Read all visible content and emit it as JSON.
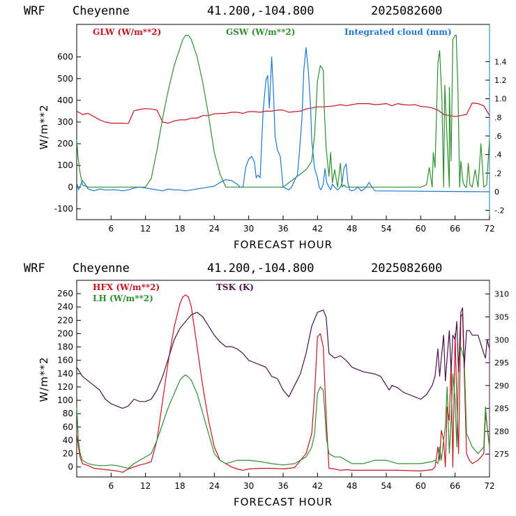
{
  "header": {
    "model": "WRF",
    "station": "Cheyenne",
    "coords": "41.200,-104.800",
    "run": "2025082600"
  },
  "colors": {
    "red": "#c8141e",
    "green": "#2f8f2f",
    "blue": "#1e78d2",
    "purple": "#4a1348"
  },
  "chart_data": [
    {
      "type": "line",
      "title": "",
      "xlabel": "FORECAST HOUR",
      "ylabel": "W/m**2",
      "xlim": [
        0,
        72
      ],
      "ylim": [
        -150,
        750
      ],
      "y2lim": [
        -0.3,
        1.8
      ],
      "xticks": [
        6,
        12,
        18,
        24,
        30,
        36,
        42,
        48,
        54,
        60,
        66,
        72
      ],
      "yticks": [
        -100,
        0,
        100,
        200,
        300,
        400,
        500,
        600
      ],
      "y2ticks": [
        -0.2,
        0,
        0.2,
        0.4,
        0.6,
        0.8,
        1.0,
        1.2,
        1.4
      ],
      "y2ticklabels": [
        "-.2",
        "0",
        ".2",
        ".4",
        ".6",
        ".8",
        "1.0",
        "1.2",
        "1.4"
      ],
      "grid": false,
      "legend": "top",
      "series": [
        {
          "name": "GLW (W/m**2)",
          "axis": "left",
          "color": "#c8141e",
          "x": [
            0,
            1,
            2,
            3,
            4,
            5,
            6,
            7,
            8,
            9,
            10,
            11,
            12,
            13,
            14,
            15,
            16,
            17,
            18,
            19,
            20,
            21,
            22,
            23,
            24,
            25,
            26,
            27,
            28,
            29,
            30,
            31,
            32,
            33,
            34,
            35,
            36,
            37,
            38,
            39,
            40,
            41,
            42,
            43,
            44,
            45,
            46,
            47,
            48,
            49,
            50,
            51,
            52,
            53,
            54,
            55,
            56,
            57,
            58,
            59,
            60,
            61,
            62,
            63,
            64,
            65,
            66,
            67,
            68,
            69,
            70,
            71,
            72
          ],
          "y": [
            350,
            335,
            340,
            325,
            310,
            300,
            295,
            295,
            295,
            293,
            352,
            358,
            362,
            360,
            355,
            300,
            295,
            305,
            310,
            310,
            318,
            318,
            330,
            330,
            338,
            340,
            340,
            345,
            345,
            340,
            348,
            348,
            345,
            350,
            350,
            355,
            355,
            345,
            348,
            350,
            360,
            365,
            370,
            370,
            372,
            375,
            380,
            375,
            380,
            385,
            385,
            385,
            380,
            382,
            385,
            375,
            385,
            380,
            378,
            380,
            372,
            370,
            365,
            355,
            335,
            330,
            325,
            330,
            335,
            388,
            385,
            375,
            330
          ]
        },
        {
          "name": "GSW (W/m**2)",
          "axis": "left",
          "color": "#2f8f2f",
          "x": [
            0,
            0.2,
            0.5,
            1,
            2,
            3,
            12,
            13,
            14,
            15,
            16,
            17,
            18,
            18.5,
            19,
            19.5,
            20,
            21,
            22,
            23,
            24,
            25,
            26,
            36,
            38,
            40,
            41,
            41.5,
            42,
            42.5,
            43,
            43.2,
            43.5,
            44,
            44.3,
            44.6,
            45,
            45.5,
            46,
            46.3,
            46.6,
            47,
            48,
            60,
            61,
            61.5,
            62,
            62.2,
            62.5,
            63,
            63.3,
            63.7,
            64,
            64.2,
            64.6,
            65,
            65,
            65.3,
            65.6,
            66,
            66.2,
            66.5,
            66.8,
            67,
            67.4,
            67.8,
            68,
            68.3,
            68.6,
            69,
            69.5,
            70,
            70.5,
            71,
            71.5,
            72
          ],
          "y": [
            220,
            150,
            80,
            10,
            0,
            0,
            0,
            40,
            170,
            320,
            450,
            560,
            640,
            680,
            700,
            700,
            680,
            600,
            480,
            330,
            160,
            60,
            0,
            0,
            40,
            80,
            120,
            240,
            490,
            560,
            540,
            350,
            180,
            50,
            160,
            20,
            80,
            0,
            110,
            0,
            10,
            0,
            0,
            0,
            10,
            90,
            0,
            160,
            90,
            570,
            630,
            400,
            0,
            470,
            220,
            0,
            460,
            120,
            680,
            700,
            700,
            440,
            0,
            120,
            20,
            0,
            0,
            110,
            10,
            0,
            80,
            0,
            200,
            0,
            10,
            220
          ]
        },
        {
          "name": "Integrated cloud (mm)",
          "axis": "right",
          "color": "#1e78d2",
          "x": [
            0,
            0.3,
            0.6,
            1,
            1.5,
            2,
            3,
            4,
            5,
            6,
            7,
            8,
            9,
            10,
            11,
            12,
            13,
            14,
            15,
            16,
            17,
            18,
            19,
            20,
            21,
            22,
            23,
            24,
            25,
            26,
            27,
            28,
            28.5,
            29,
            29.5,
            30,
            30.5,
            31,
            31.3,
            31.6,
            32,
            32.5,
            33,
            33.3,
            33.6,
            34,
            34.3,
            34.6,
            35,
            35.5,
            36,
            37,
            37.5,
            38,
            38.5,
            39,
            39.3,
            39.6,
            40,
            40.4,
            40.8,
            41,
            41.5,
            42,
            42.3,
            42.6,
            43,
            43.3,
            43.6,
            44,
            44.3,
            44.6,
            45,
            45.5,
            46,
            46.3,
            46.6,
            47,
            47.3,
            47.6,
            48,
            48.5,
            49,
            49.3,
            49.6,
            50,
            50.5,
            51,
            51.5,
            52,
            72
          ],
          "y": [
            0.1,
            0.02,
            0.06,
            0.12,
            0.08,
            0.03,
            0.01,
            0.03,
            0.02,
            0.02,
            0.02,
            0.01,
            0.02,
            0.04,
            0.05,
            0.04,
            0.03,
            0.02,
            0.01,
            0.03,
            0.02,
            0.02,
            0.01,
            0.02,
            0.03,
            0.04,
            0.05,
            0.06,
            0.1,
            0.13,
            0.12,
            0.08,
            0.05,
            0.05,
            0.27,
            0.35,
            0.38,
            0.32,
            0.15,
            0.18,
            0.15,
            0.85,
            1.2,
            1.25,
            0.9,
            1.45,
            1.1,
            0.6,
            0.45,
            0.38,
            0.05,
            0.02,
            0.05,
            0.12,
            0.18,
            0.55,
            0.8,
            1.3,
            1.55,
            1.3,
            0.9,
            0.55,
            0.25,
            0.15,
            0.05,
            0.02,
            0.08,
            0.25,
            0.1,
            0.05,
            0.02,
            0.08,
            0.05,
            0.02,
            0.05,
            0.1,
            0.25,
            0.3,
            0.1,
            0.02,
            0.01,
            0.02,
            0.05,
            0.03,
            0.01,
            0.02,
            0.05,
            0.1,
            0.05,
            0.01,
            0
          ]
        }
      ]
    },
    {
      "type": "line",
      "title": "",
      "xlabel": "FORECAST HOUR",
      "ylabel": "W/m**2",
      "xlim": [
        0,
        72
      ],
      "ylim": [
        -15,
        280
      ],
      "y2lim": [
        270,
        313
      ],
      "xticks": [
        6,
        12,
        18,
        24,
        30,
        36,
        42,
        48,
        54,
        60,
        66,
        72
      ],
      "yticks": [
        0,
        20,
        40,
        60,
        80,
        100,
        120,
        140,
        160,
        180,
        200,
        220,
        240,
        260
      ],
      "y2ticks": [
        275,
        280,
        285,
        290,
        295,
        300,
        305,
        310
      ],
      "grid": false,
      "legend": "top-left",
      "series": [
        {
          "name": "HFX (W/m**2)",
          "axis": "left",
          "color": "#c8141e",
          "x": [
            0,
            0.3,
            0.6,
            1,
            2,
            3,
            4,
            5,
            6,
            7,
            8,
            9,
            10,
            11,
            12,
            13,
            14,
            15,
            16,
            17,
            18,
            18.5,
            19,
            19.5,
            20,
            21,
            22,
            23,
            24,
            25,
            26,
            27,
            28,
            29,
            30,
            32,
            34,
            36,
            38,
            40,
            41,
            41.5,
            42,
            42.5,
            43,
            43.3,
            43.6,
            44,
            45,
            46,
            47,
            48,
            52,
            56,
            60,
            62,
            62.5,
            63,
            63.3,
            63.6,
            64,
            64.3,
            64.6,
            65,
            65.3,
            65.6,
            66,
            66.3,
            66.6,
            67,
            67.3,
            67.6,
            68,
            68.5,
            69,
            70,
            71,
            71.3,
            71.6,
            72
          ],
          "y": [
            50,
            30,
            15,
            5,
            2,
            -2,
            -3,
            -4,
            -5,
            -6,
            -8,
            -3,
            0,
            3,
            5,
            8,
            40,
            100,
            160,
            210,
            245,
            255,
            258,
            255,
            240,
            180,
            120,
            70,
            30,
            10,
            5,
            0,
            -3,
            -5,
            -3,
            -2,
            -2,
            -3,
            -1,
            20,
            50,
            110,
            195,
            200,
            180,
            120,
            60,
            -2,
            -3,
            -5,
            -4,
            -5,
            -5,
            -5,
            -6,
            -4,
            0,
            30,
            10,
            55,
            40,
            0,
            90,
            70,
            160,
            0,
            200,
            100,
            20,
            225,
            230,
            140,
            20,
            10,
            5,
            10,
            20,
            80,
            60,
            30
          ]
        },
        {
          "name": "LH (W/m**2)",
          "axis": "left",
          "color": "#2f8f2f",
          "x": [
            0,
            0.3,
            0.6,
            1,
            2,
            3,
            4,
            5,
            6,
            7,
            8,
            9,
            10,
            11,
            12,
            13,
            14,
            15,
            16,
            17,
            18,
            18.5,
            19,
            19.5,
            20,
            21,
            22,
            23,
            24,
            25,
            26,
            28,
            30,
            32,
            34,
            36,
            38,
            40,
            41,
            41.5,
            42,
            42.5,
            43,
            43.3,
            43.6,
            44,
            45,
            46,
            47,
            48,
            50,
            52,
            54,
            56,
            58,
            60,
            62,
            62.5,
            63,
            63.3,
            63.6,
            64,
            64.3,
            64.6,
            65,
            65.3,
            65.6,
            66,
            66.3,
            66.6,
            67,
            67.3,
            67.6,
            68,
            68.5,
            69,
            70,
            71,
            71.3,
            71.6,
            72
          ],
          "y": [
            90,
            40,
            20,
            10,
            5,
            3,
            2,
            2,
            3,
            2,
            0,
            -2,
            5,
            10,
            15,
            20,
            40,
            65,
            90,
            110,
            130,
            135,
            138,
            135,
            130,
            110,
            80,
            50,
            20,
            10,
            5,
            10,
            10,
            8,
            5,
            3,
            5,
            15,
            30,
            50,
            110,
            120,
            115,
            80,
            40,
            20,
            15,
            15,
            10,
            5,
            5,
            10,
            10,
            5,
            5,
            5,
            8,
            10,
            5,
            30,
            10,
            40,
            60,
            120,
            20,
            70,
            140,
            100,
            30,
            160,
            180,
            170,
            160,
            50,
            40,
            30,
            20,
            30,
            90,
            60,
            30
          ]
        },
        {
          "name": "TSK (K)",
          "axis": "right",
          "color": "#4a1348",
          "x": [
            0,
            1,
            2,
            3,
            4,
            5,
            6,
            7,
            8,
            9,
            10,
            11,
            12,
            13,
            14,
            15,
            16,
            17,
            18,
            19,
            20,
            21,
            22,
            23,
            24,
            25,
            26,
            27,
            28,
            29,
            30,
            31,
            32,
            33,
            34,
            35,
            36,
            37,
            38,
            39,
            40,
            41,
            42,
            43,
            43.5,
            44,
            45,
            46,
            47,
            48,
            50,
            52,
            53,
            54,
            54.5,
            55,
            56,
            57,
            58,
            59,
            60,
            61,
            62,
            62.5,
            63,
            63.3,
            63.6,
            64,
            64.3,
            64.6,
            65,
            65.3,
            65.6,
            66,
            66.3,
            66.6,
            67,
            67.3,
            67.6,
            68,
            68.5,
            69,
            70,
            71,
            71.3,
            71.6,
            72
          ],
          "y": [
            294,
            292,
            291,
            290,
            289,
            287,
            286,
            285.5,
            285,
            285.5,
            287,
            286.5,
            286.5,
            287,
            289,
            292,
            296,
            300,
            302.5,
            304,
            305.5,
            306,
            305,
            303,
            301,
            299.5,
            298.5,
            298.5,
            298,
            297,
            295.5,
            295,
            294.5,
            294,
            292,
            291.5,
            289,
            287.5,
            290,
            292.5,
            297,
            303,
            306,
            306.5,
            305,
            297,
            296,
            296.5,
            295.5,
            294,
            293,
            292.5,
            292,
            290,
            289,
            290,
            289.5,
            288.5,
            288,
            287.5,
            287,
            288,
            290,
            292,
            298,
            292,
            296,
            301,
            291,
            296,
            302,
            293,
            301,
            300,
            304,
            293,
            306,
            307,
            294,
            302,
            302,
            301,
            301,
            297,
            296,
            300,
            298
          ]
        }
      ]
    }
  ]
}
